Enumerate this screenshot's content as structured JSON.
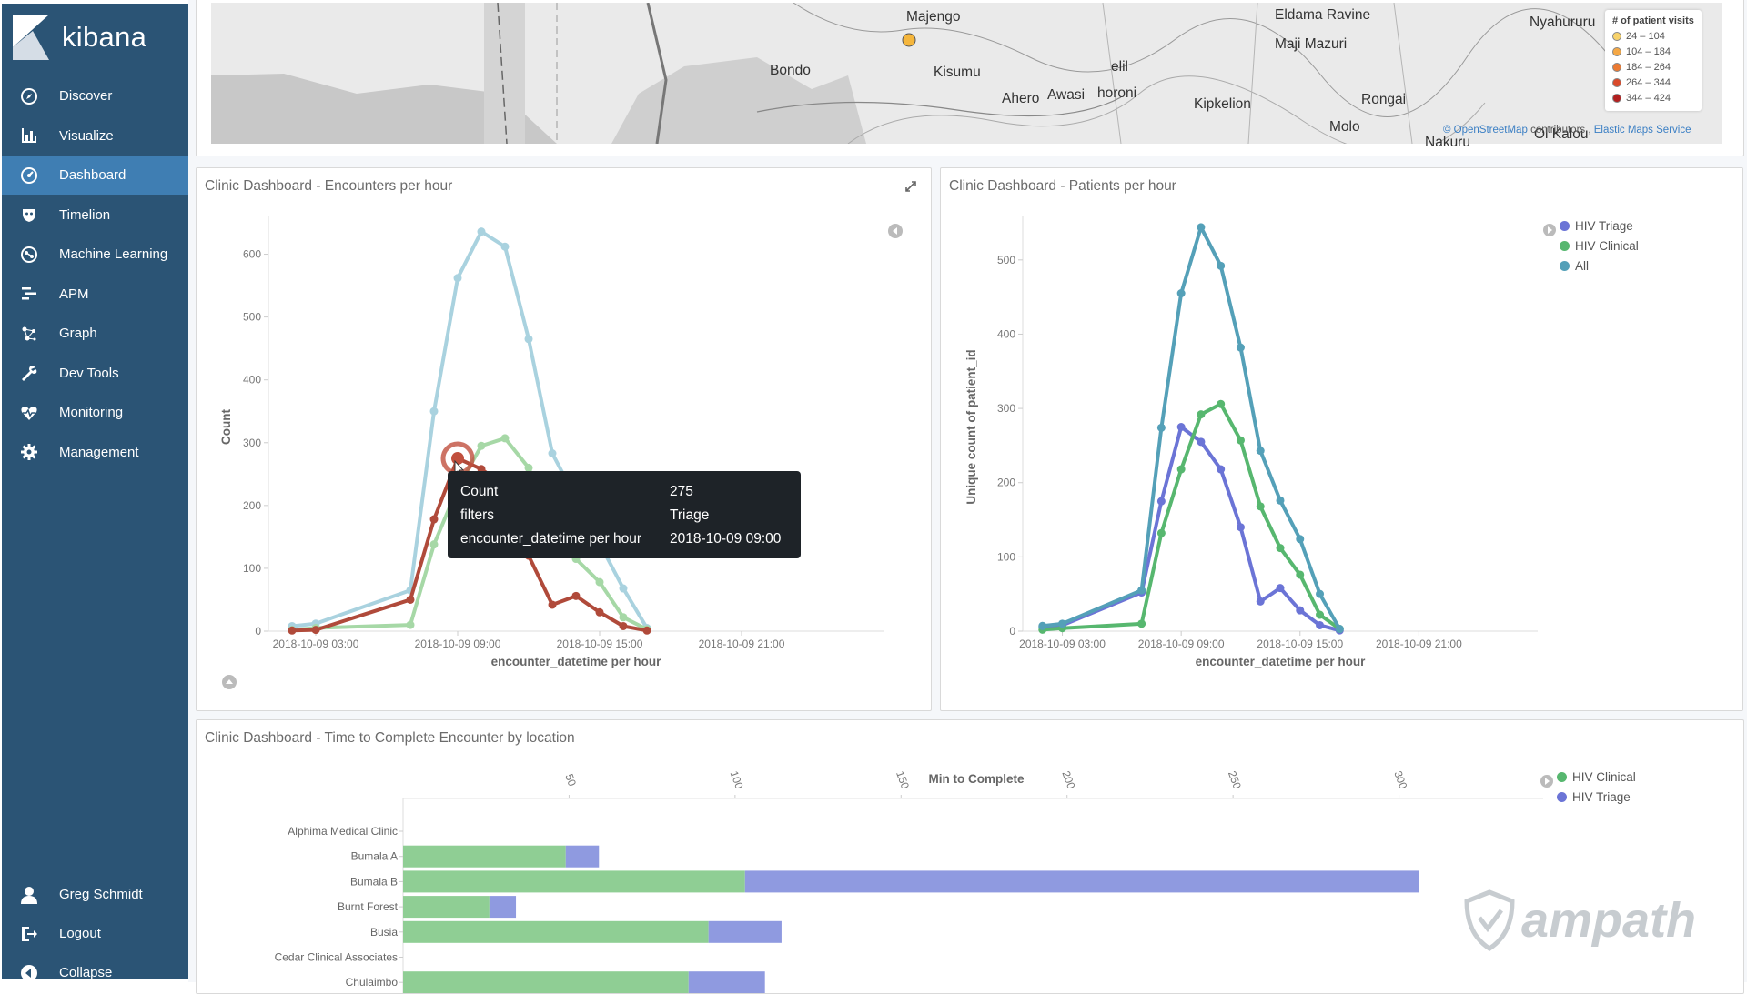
{
  "app": {
    "name": "kibana"
  },
  "sidebar": {
    "items": [
      {
        "label": "Discover",
        "icon": "compass-icon"
      },
      {
        "label": "Visualize",
        "icon": "bar-chart-icon"
      },
      {
        "label": "Dashboard",
        "icon": "dashboard-icon",
        "active": true
      },
      {
        "label": "Timelion",
        "icon": "timelion-icon"
      },
      {
        "label": "Machine Learning",
        "icon": "machine-learning-icon"
      },
      {
        "label": "APM",
        "icon": "apm-icon"
      },
      {
        "label": "Graph",
        "icon": "graph-icon"
      },
      {
        "label": "Dev Tools",
        "icon": "wrench-icon"
      },
      {
        "label": "Monitoring",
        "icon": "heartbeat-icon"
      },
      {
        "label": "Management",
        "icon": "gear-icon"
      }
    ],
    "user": {
      "label": "Greg Schmidt",
      "icon": "user-icon"
    },
    "logout": {
      "label": "Logout",
      "icon": "logout-icon"
    },
    "collapse": {
      "label": "Collapse",
      "icon": "collapse-icon"
    }
  },
  "map": {
    "places": [
      "Majengo",
      "Eldama Ravine",
      "Nyahururu",
      "Maji Mazuri",
      "Bondo",
      "Kisumu",
      "elil",
      "Ahero",
      "Awasi",
      "horoni",
      "Kipkelion",
      "Rongai",
      "Molo",
      "Nakuru",
      "Ol Kalou"
    ],
    "legend_title": "# of patient visits",
    "legend": [
      {
        "label": "24 – 104",
        "color": "#f7d26a"
      },
      {
        "label": "104 – 184",
        "color": "#f5a845"
      },
      {
        "label": "184 – 264",
        "color": "#ec7a32"
      },
      {
        "label": "264 – 344",
        "color": "#d94a2b"
      },
      {
        "label": "344 – 424",
        "color": "#b22020"
      }
    ],
    "attribution_osm": "© OpenStreetMap",
    "attribution_contrib": "contributors ,",
    "attribution_ems": "Elastic Maps Service"
  },
  "panel_encounters": {
    "title": "Clinic Dashboard - Encounters per hour",
    "tooltip": [
      {
        "key": "Count",
        "value": "275"
      },
      {
        "key": "filters",
        "value": "Triage"
      },
      {
        "key": "encounter_datetime per hour",
        "value": "2018-10-09 09:00"
      }
    ]
  },
  "panel_patients": {
    "title": "Clinic Dashboard - Patients per hour",
    "legend": [
      {
        "label": "HIV Triage",
        "color": "#6b74d6"
      },
      {
        "label": "HIV Clinical",
        "color": "#57b76f"
      },
      {
        "label": "All",
        "color": "#54a0b8"
      }
    ]
  },
  "panel_time": {
    "title": "Clinic Dashboard - Time to Complete Encounter by location",
    "legend": [
      {
        "label": "HIV Clinical",
        "color": "#57b76f"
      },
      {
        "label": "HIV Triage",
        "color": "#6b74d6"
      }
    ]
  },
  "watermark": "ampath",
  "chart_data": [
    {
      "type": "line",
      "xlabel": "encounter_datetime per hour",
      "ylabel": "Count",
      "x_ticks": [
        "2018-10-09 03:00",
        "2018-10-09 09:00",
        "2018-10-09 15:00",
        "2018-10-09 21:00"
      ],
      "y_ticks": [
        0,
        100,
        200,
        300,
        400,
        500,
        600
      ],
      "ylim": [
        0,
        650
      ],
      "x_unit": "hours since 2018-10-09 03:00",
      "xlim": [
        -2,
        24
      ],
      "series": [
        {
          "name": "All",
          "color": "#a9d2df",
          "points": [
            [
              -1,
              8
            ],
            [
              0,
              12
            ],
            [
              4,
              65
            ],
            [
              5,
              350
            ],
            [
              6,
              562
            ],
            [
              7,
              636
            ],
            [
              8,
              612
            ],
            [
              9,
              465
            ],
            [
              10,
              283
            ],
            [
              13,
              68
            ],
            [
              14,
              5
            ]
          ]
        },
        {
          "name": "Clinical",
          "color": "#a6d8a6",
          "points": [
            [
              -1,
              2
            ],
            [
              0,
              5
            ],
            [
              4,
              10
            ],
            [
              5,
              138
            ],
            [
              6,
              228
            ],
            [
              7,
              295
            ],
            [
              8,
              307
            ],
            [
              9,
              260
            ],
            [
              10,
              172
            ],
            [
              11,
              115
            ],
            [
              12,
              78
            ],
            [
              13,
              22
            ],
            [
              14,
              3
            ]
          ]
        },
        {
          "name": "Triage",
          "color": "#b04a3a",
          "points": [
            [
              -1,
              1
            ],
            [
              0,
              2
            ],
            [
              4,
              50
            ],
            [
              5,
              178
            ],
            [
              6,
              275
            ],
            [
              7,
              258
            ],
            [
              8,
              230
            ],
            [
              9,
              120
            ],
            [
              10,
              42
            ],
            [
              11,
              56
            ],
            [
              12,
              30
            ],
            [
              13,
              8
            ],
            [
              14,
              1
            ]
          ]
        }
      ]
    },
    {
      "type": "line",
      "xlabel": "encounter_datetime per hour",
      "ylabel": "Unique count of patient_id",
      "x_ticks": [
        "2018-10-09 03:00",
        "2018-10-09 09:00",
        "2018-10-09 15:00",
        "2018-10-09 21:00"
      ],
      "y_ticks": [
        0,
        100,
        200,
        300,
        400,
        500
      ],
      "ylim": [
        0,
        550
      ],
      "x_unit": "hours since 2018-10-09 03:00",
      "xlim": [
        -2,
        24
      ],
      "series": [
        {
          "name": "HIV Triage",
          "color": "#6b74d6",
          "points": [
            [
              -1,
              5
            ],
            [
              0,
              8
            ],
            [
              4,
              52
            ],
            [
              5,
              175
            ],
            [
              6,
              275
            ],
            [
              7,
              255
            ],
            [
              8,
              218
            ],
            [
              9,
              140
            ],
            [
              10,
              40
            ],
            [
              11,
              58
            ],
            [
              12,
              28
            ],
            [
              13,
              8
            ],
            [
              14,
              1
            ]
          ]
        },
        {
          "name": "HIV Clinical",
          "color": "#57b76f",
          "points": [
            [
              -1,
              2
            ],
            [
              0,
              4
            ],
            [
              4,
              10
            ],
            [
              5,
              132
            ],
            [
              6,
              218
            ],
            [
              7,
              292
            ],
            [
              8,
              306
            ],
            [
              9,
              257
            ],
            [
              10,
              168
            ],
            [
              11,
              112
            ],
            [
              12,
              76
            ],
            [
              13,
              22
            ],
            [
              14,
              3
            ]
          ]
        },
        {
          "name": "All",
          "color": "#54a0b8",
          "points": [
            [
              -1,
              7
            ],
            [
              0,
              10
            ],
            [
              4,
              55
            ],
            [
              5,
              274
            ],
            [
              6,
              455
            ],
            [
              7,
              544
            ],
            [
              8,
              492
            ],
            [
              9,
              382
            ],
            [
              10,
              243
            ],
            [
              11,
              176
            ],
            [
              12,
              124
            ],
            [
              13,
              50
            ],
            [
              14,
              3
            ]
          ]
        }
      ]
    },
    {
      "type": "bar",
      "orientation": "horizontal",
      "stacked": true,
      "title": "Min to Complete",
      "x_ticks": [
        50,
        100,
        150,
        200,
        250,
        300
      ],
      "xlim": [
        0,
        350
      ],
      "categories": [
        "Alphima Medical Clinic",
        "Bumala A",
        "Bumala B",
        "Burnt Forest",
        "Busia",
        "Cedar Clinical Associates",
        "Chulaimbo"
      ],
      "series": [
        {
          "name": "HIV Clinical",
          "color": "#8fce94",
          "values": [
            0,
            49,
            103,
            26,
            92,
            0,
            86
          ]
        },
        {
          "name": "HIV Triage",
          "color": "#8f9ae0",
          "values": [
            0,
            10,
            203,
            8,
            22,
            0,
            23
          ]
        }
      ]
    }
  ]
}
